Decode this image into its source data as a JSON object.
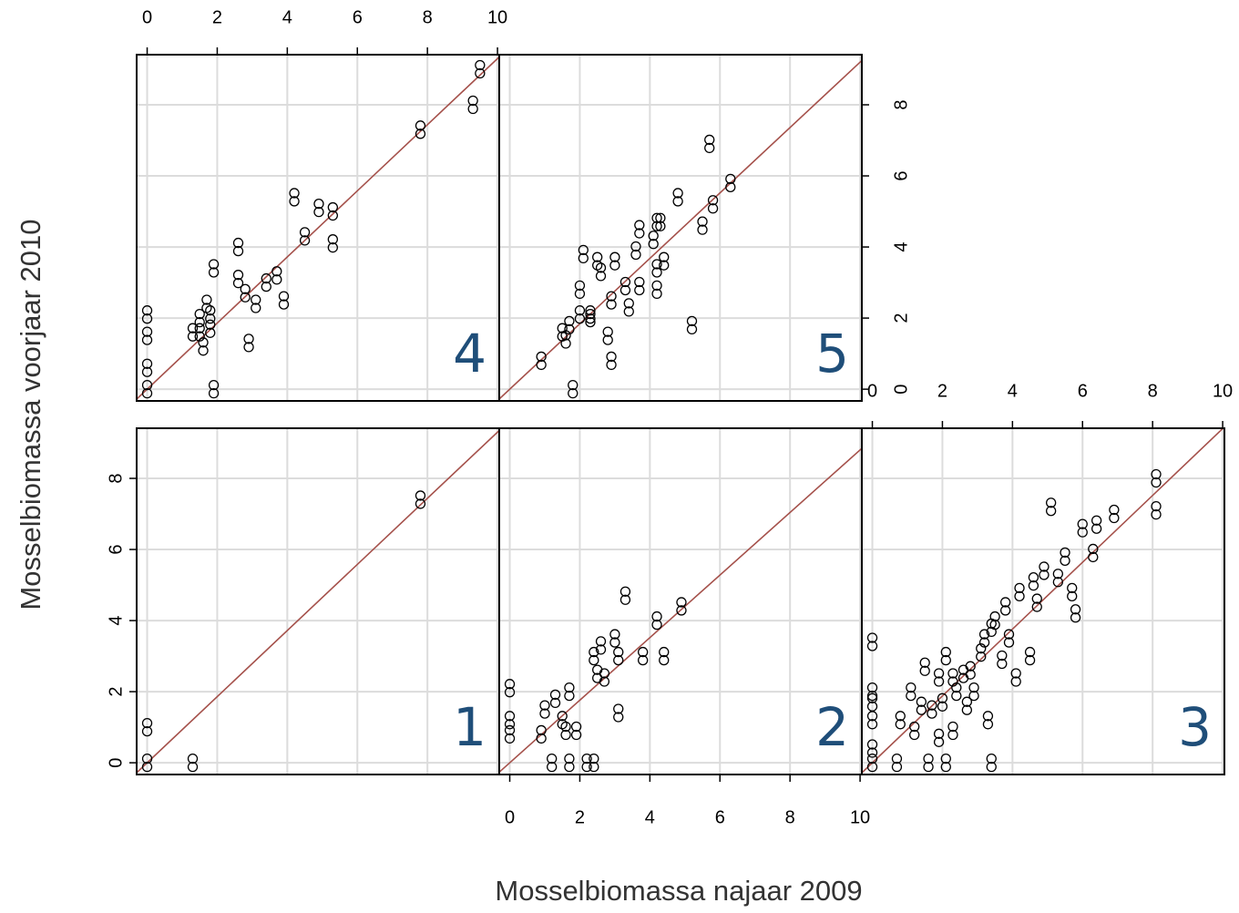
{
  "axis_labels": {
    "x": "Mosselbiomassa najaar 2009",
    "y": "Mosselbiomassa voorjaar 2010"
  },
  "chart_data": [
    {
      "type": "scatter",
      "title": "1",
      "color": "#000000",
      "line_color": "#a5514b",
      "fit_slope": 0.93,
      "y_axis": "left",
      "xlim": [
        -0.3,
        10.05
      ],
      "ylim": [
        -0.33,
        9.41
      ],
      "xticks": [
        0,
        2,
        4,
        6,
        8,
        10
      ],
      "yticks": [
        0,
        2,
        4,
        6,
        8
      ],
      "grid": true,
      "x": [
        0,
        0,
        1.3,
        7.8
      ],
      "y": [
        1.0,
        0,
        0,
        7.4
      ]
    },
    {
      "type": "scatter",
      "title": "2",
      "color": "#000000",
      "line_color": "#a5514b",
      "fit_slope": 0.88,
      "x_axis": "bottom",
      "xlim": [
        -0.3,
        10.05
      ],
      "ylim": [
        -0.33,
        9.41
      ],
      "xticks": [
        0,
        2,
        4,
        6,
        8,
        10
      ],
      "yticks": [
        0,
        2,
        4,
        6,
        8
      ],
      "grid": true,
      "x": [
        0,
        0,
        0,
        0.9,
        1.0,
        1.3,
        1.2,
        1.5,
        1.6,
        1.7,
        1.7,
        1.9,
        2.2,
        2.4,
        2.4,
        2.5,
        2.6,
        2.7,
        3.1,
        3.1,
        3.3,
        3.8,
        4.2,
        4.4,
        4.9,
        3.0
      ],
      "y": [
        2.1,
        1.2,
        0.8,
        0.8,
        1.5,
        1.8,
        0,
        1.2,
        0.9,
        2.0,
        0,
        0.9,
        0,
        3.0,
        0,
        2.5,
        3.3,
        2.4,
        3.0,
        1.4,
        4.7,
        3.0,
        4.0,
        3.0,
        4.4,
        3.5
      ]
    },
    {
      "type": "scatter",
      "title": "3",
      "color": "#000000",
      "line_color": "#a5514b",
      "fit_slope": 0.94,
      "x_axis": "top",
      "xlim": [
        -0.3,
        10.05
      ],
      "ylim": [
        -0.33,
        9.41
      ],
      "xticks": [
        0,
        2,
        4,
        6,
        8,
        10
      ],
      "yticks": [
        0,
        2,
        4,
        6,
        8
      ],
      "grid": true,
      "x": [
        0,
        0,
        0,
        0,
        0,
        0,
        0.7,
        0.8,
        1.1,
        1.2,
        1.4,
        1.5,
        1.6,
        1.7,
        1.9,
        2.0,
        2.1,
        2.1,
        2.3,
        2.4,
        2.6,
        2.7,
        2.8,
        2.9,
        3.1,
        3.2,
        3.3,
        3.4,
        3.4,
        3.5,
        3.7,
        3.9,
        3.8,
        4.1,
        4.2,
        4.5,
        4.6,
        4.7,
        4.9,
        5.1,
        5.3,
        5.5,
        5.7,
        5.8,
        6.0,
        6.3,
        6.4,
        6.9,
        8.1,
        8.1,
        2.3,
        1.9
      ],
      "y": [
        3.4,
        2.0,
        1.2,
        0.4,
        0,
        1.7,
        0,
        1.2,
        2.0,
        0.9,
        1.6,
        2.7,
        0,
        1.5,
        0.7,
        1.7,
        3.0,
        0,
        2.4,
        2.0,
        2.5,
        1.6,
        2.6,
        2.0,
        3.1,
        3.5,
        1.2,
        0,
        3.8,
        4.0,
        2.9,
        3.5,
        4.4,
        2.4,
        4.8,
        3.0,
        5.1,
        4.5,
        5.4,
        7.2,
        5.2,
        5.8,
        4.8,
        4.2,
        6.6,
        5.9,
        6.7,
        7.0,
        8.0,
        7.1,
        0.9,
        2.4
      ]
    },
    {
      "type": "scatter",
      "title": "4",
      "color": "#000000",
      "line_color": "#a5514b",
      "fit_slope": 0.93,
      "x_axis": "top",
      "xlim": [
        -0.3,
        10.05
      ],
      "ylim": [
        -0.33,
        9.41
      ],
      "xticks": [
        0,
        2,
        4,
        6,
        8,
        10
      ],
      "yticks": [
        0,
        2,
        4,
        6,
        8
      ],
      "grid": true,
      "x": [
        0,
        0,
        0,
        0,
        1.9,
        1.3,
        1.5,
        1.7,
        1.6,
        1.8,
        1.9,
        2.6,
        2.6,
        2.8,
        2.9,
        3.1,
        3.4,
        3.7,
        3.9,
        4.2,
        4.5,
        4.9,
        5.3,
        5.3,
        7.8,
        9.3,
        9.5,
        1.8,
        1.5
      ],
      "y": [
        2.1,
        1.5,
        0.6,
        0,
        0,
        1.6,
        1.6,
        2.4,
        1.2,
        2.1,
        3.4,
        4.0,
        3.1,
        2.7,
        1.3,
        2.4,
        3.0,
        3.2,
        2.5,
        5.4,
        4.3,
        5.1,
        4.1,
        5.0,
        7.3,
        8.0,
        9.0,
        1.7,
        2.0
      ]
    },
    {
      "type": "scatter",
      "title": "5",
      "color": "#000000",
      "line_color": "#a5514b",
      "fit_slope": 0.92,
      "y_axis": "right",
      "xlim": [
        -0.3,
        10.05
      ],
      "ylim": [
        -0.33,
        9.41
      ],
      "xticks": [
        0,
        2,
        4,
        6,
        8,
        10
      ],
      "yticks": [
        0,
        2,
        4,
        6,
        8
      ],
      "grid": true,
      "x": [
        0.9,
        1.5,
        1.6,
        1.8,
        1.7,
        2.0,
        2.0,
        2.1,
        2.3,
        2.3,
        2.5,
        2.6,
        2.8,
        2.9,
        2.9,
        3.0,
        3.4,
        3.3,
        3.6,
        3.7,
        3.7,
        4.1,
        4.2,
        4.3,
        4.2,
        4.4,
        4.8,
        5.2,
        5.5,
        5.7,
        5.8,
        6.3,
        4.2
      ],
      "y": [
        0.8,
        1.6,
        1.4,
        0,
        1.8,
        2.1,
        2.8,
        3.8,
        2.1,
        2.0,
        3.6,
        3.3,
        1.5,
        0.8,
        2.5,
        3.6,
        2.3,
        2.9,
        3.9,
        4.5,
        2.9,
        4.2,
        4.7,
        4.7,
        2.8,
        3.6,
        5.4,
        1.8,
        4.6,
        6.9,
        5.2,
        5.8,
        3.4
      ]
    }
  ]
}
